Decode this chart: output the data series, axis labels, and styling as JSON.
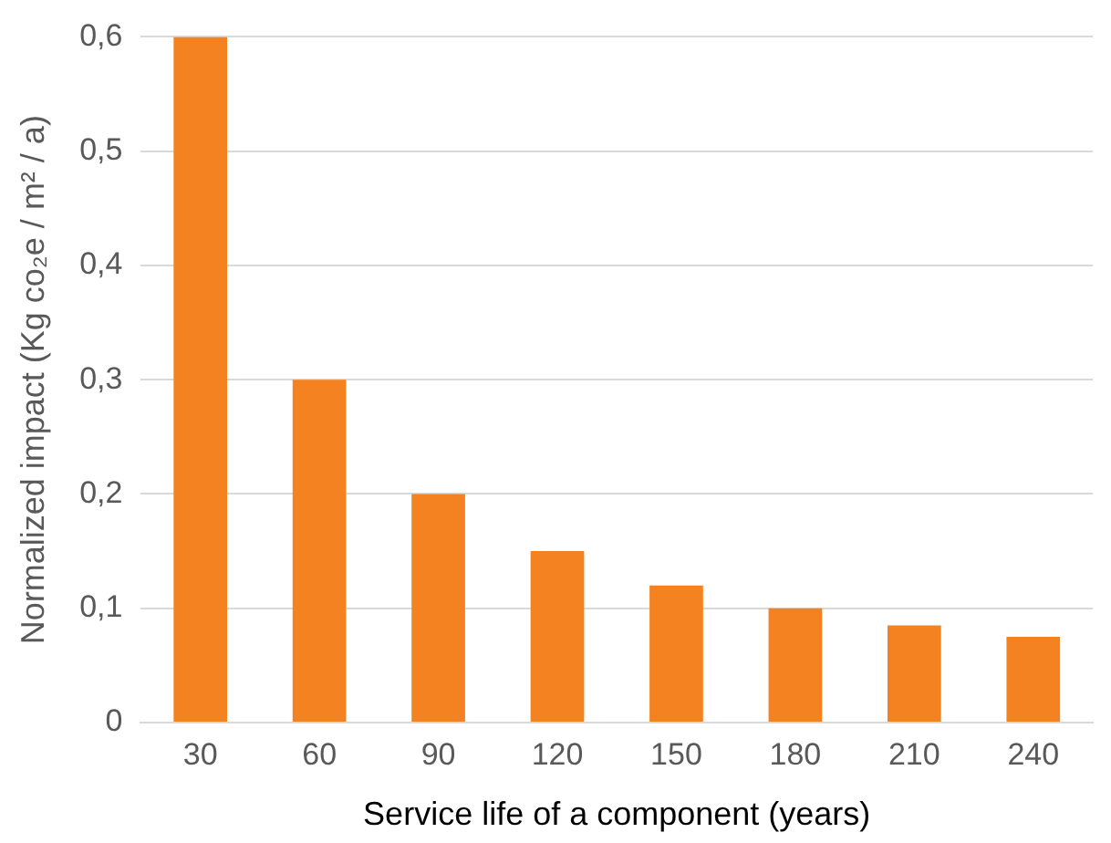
{
  "chart_data": {
    "type": "bar",
    "xlabel": "Service life of a component (years)",
    "ylabel": "Normalized impact (Kg co₂e / m² / a)",
    "categories": [
      "30",
      "60",
      "90",
      "120",
      "150",
      "180",
      "210",
      "240"
    ],
    "values": [
      0.6,
      0.3,
      0.2,
      0.15,
      0.12,
      0.1,
      0.085,
      0.075
    ],
    "color": "#f58220",
    "ylim": [
      0,
      0.6
    ],
    "yticks": [
      0,
      {
        "value": 0.1,
        "label": "0,1"
      },
      {
        "value": 0.2,
        "label": "0,2"
      },
      {
        "value": 0.3,
        "label": "0,3"
      },
      {
        "value": 0.4,
        "label": "0,4"
      },
      {
        "value": 0.5,
        "label": "0,5"
      },
      {
        "value": 0.6,
        "label": "0,6"
      }
    ],
    "grid": "y",
    "legend": false
  }
}
